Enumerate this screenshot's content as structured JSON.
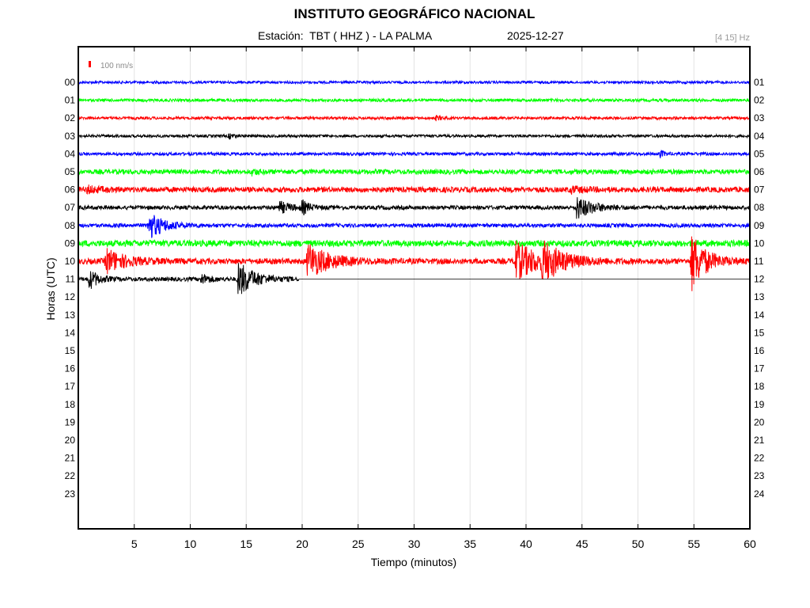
{
  "header": {
    "title": "INSTITUTO GEOGRÁFICO NACIONAL",
    "station": "Estación:  TBT ( HHZ ) - LA PALMA",
    "date": "2025-12-27",
    "filter": "[4 15] Hz"
  },
  "chart_data": {
    "type": "line",
    "xlabel": "Tiempo (minutos)",
    "ylabel": "Horas (UTC)",
    "xlim": [
      0,
      60
    ],
    "x_ticks": [
      5,
      10,
      15,
      20,
      25,
      30,
      35,
      40,
      45,
      50,
      55,
      60
    ],
    "grid": true,
    "left_hour_labels": [
      "00",
      "01",
      "02",
      "03",
      "04",
      "05",
      "06",
      "07",
      "08",
      "09",
      "10",
      "11",
      "12",
      "13",
      "14",
      "15",
      "16",
      "17",
      "18",
      "19",
      "20",
      "21",
      "22",
      "23"
    ],
    "right_hour_labels": [
      "01",
      "02",
      "03",
      "04",
      "05",
      "06",
      "07",
      "08",
      "09",
      "10",
      "11",
      "12",
      "13",
      "14",
      "15",
      "16",
      "17",
      "18",
      "19",
      "20",
      "21",
      "22",
      "23",
      "24"
    ],
    "scale_legend": {
      "label": "100 nm/s",
      "color": "#ff0000"
    },
    "series": [
      {
        "hour": 0,
        "color": "#0000ff",
        "noise": 1.6,
        "end_minute": 60,
        "events": []
      },
      {
        "hour": 1,
        "color": "#00ff00",
        "noise": 1.8,
        "end_minute": 60,
        "events": []
      },
      {
        "hour": 2,
        "color": "#ff0000",
        "noise": 1.7,
        "end_minute": 60,
        "events": [
          {
            "t": 32.0,
            "amp": 3,
            "dur": 0.4
          }
        ]
      },
      {
        "hour": 3,
        "color": "#000000",
        "noise": 1.7,
        "end_minute": 60,
        "events": [
          {
            "t": 13.5,
            "amp": 3,
            "dur": 0.5
          }
        ]
      },
      {
        "hour": 4,
        "color": "#0000ff",
        "noise": 1.9,
        "end_minute": 60,
        "events": [
          {
            "t": 52.0,
            "amp": 4,
            "dur": 0.4
          }
        ]
      },
      {
        "hour": 5,
        "color": "#00ff00",
        "noise": 3.0,
        "end_minute": 60,
        "events": [
          {
            "t": 15.5,
            "amp": 3,
            "dur": 0.6
          }
        ]
      },
      {
        "hour": 6,
        "color": "#ff0000",
        "noise": 3.4,
        "end_minute": 60,
        "events": [
          {
            "t": 0.8,
            "amp": 4,
            "dur": 1.0
          },
          {
            "t": 44.0,
            "amp": 3,
            "dur": 1.2
          }
        ]
      },
      {
        "hour": 7,
        "color": "#000000",
        "noise": 2.5,
        "end_minute": 60,
        "events": [
          {
            "t": 18.0,
            "amp": 7,
            "dur": 1.0
          },
          {
            "t": 20.0,
            "amp": 8,
            "dur": 0.6
          },
          {
            "t": 44.5,
            "amp": 14,
            "dur": 1.4
          }
        ]
      },
      {
        "hour": 8,
        "color": "#0000ff",
        "noise": 2.4,
        "end_minute": 60,
        "events": [
          {
            "t": 6.3,
            "amp": 17,
            "dur": 1.3
          }
        ]
      },
      {
        "hour": 9,
        "color": "#00ff00",
        "noise": 4.0,
        "end_minute": 60,
        "events": []
      },
      {
        "hour": 10,
        "color": "#ff0000",
        "noise": 3.6,
        "end_minute": 60,
        "events": [
          {
            "t": 2.5,
            "amp": 15,
            "dur": 1.6
          },
          {
            "t": 20.5,
            "amp": 22,
            "dur": 1.8
          },
          {
            "t": 39.0,
            "amp": 24,
            "dur": 2.2
          },
          {
            "t": 41.5,
            "amp": 20,
            "dur": 1.6
          },
          {
            "t": 54.8,
            "amp": 36,
            "dur": 1.2
          }
        ]
      },
      {
        "hour": 11,
        "color": "#000000",
        "noise": 2.5,
        "end_minute": 19.7,
        "events": [
          {
            "t": 1.0,
            "amp": 12,
            "dur": 0.8
          },
          {
            "t": 11.0,
            "amp": 6,
            "dur": 0.8
          },
          {
            "t": 14.3,
            "amp": 22,
            "dur": 1.4
          }
        ]
      }
    ]
  }
}
